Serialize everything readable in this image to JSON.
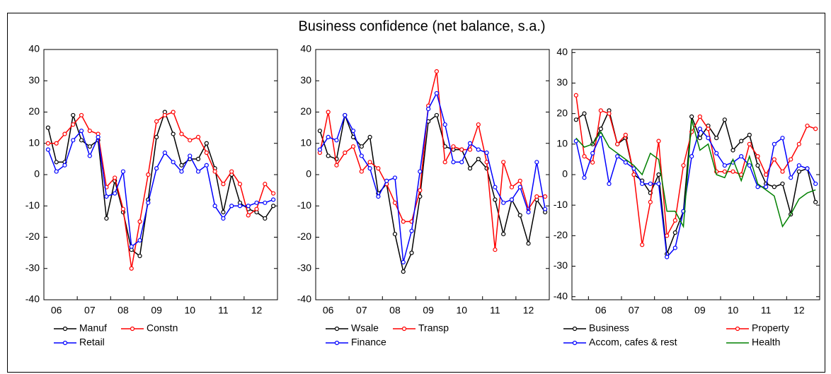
{
  "title": "Business confidence (net balance, s.a.)",
  "chart_data": [
    {
      "type": "line",
      "ylim": [
        -40,
        40
      ],
      "yticks": [
        -40,
        -30,
        -20,
        -10,
        0,
        10,
        20,
        30,
        40
      ],
      "categories": [
        null,
        "06",
        null,
        null,
        null,
        "07",
        null,
        null,
        null,
        "08",
        null,
        null,
        null,
        "09",
        null,
        null,
        null,
        "10",
        null,
        null,
        null,
        "11",
        null,
        null,
        null,
        "12",
        null,
        null
      ],
      "series": [
        {
          "name": "Manuf",
          "color": "#000000",
          "marker": true,
          "values": [
            15,
            4,
            4,
            19,
            11,
            9,
            11,
            -14,
            -2,
            -12,
            -24,
            -26,
            -8,
            12,
            20,
            13,
            3,
            5,
            5,
            10,
            2,
            -12,
            0,
            -9,
            -11,
            -12,
            -14,
            -10
          ]
        },
        {
          "name": "Constn",
          "color": "#ff0000",
          "marker": true,
          "values": [
            10,
            10,
            13,
            16,
            19,
            14,
            13,
            -4,
            -1,
            -11,
            -30,
            -15,
            0,
            17,
            19,
            20,
            13,
            11,
            12,
            7,
            1,
            -3,
            1,
            -3,
            -13,
            -11,
            -3,
            -6
          ]
        },
        {
          "name": "Retail",
          "color": "#0000ff",
          "marker": true,
          "values": [
            8,
            1,
            3,
            11,
            14,
            6,
            12,
            -7,
            -6,
            1,
            -23,
            -21,
            -9,
            2,
            7,
            4,
            1,
            6,
            1,
            3,
            -10,
            -14,
            -10,
            -10,
            -10,
            -9,
            -9,
            -8
          ]
        }
      ]
    },
    {
      "type": "line",
      "ylim": [
        -40,
        40
      ],
      "yticks": [
        -40,
        -30,
        -20,
        -10,
        0,
        10,
        20,
        30,
        40
      ],
      "categories": [
        null,
        "06",
        null,
        null,
        null,
        "07",
        null,
        null,
        null,
        "08",
        null,
        null,
        null,
        "09",
        null,
        null,
        null,
        "10",
        null,
        null,
        null,
        "11",
        null,
        null,
        null,
        "12",
        null,
        null
      ],
      "series": [
        {
          "name": "Wsale",
          "color": "#000000",
          "marker": true,
          "values": [
            14,
            6,
            5,
            19,
            12,
            9,
            12,
            -6,
            -3,
            -19,
            -31,
            -25,
            -7,
            17,
            19,
            9,
            8,
            8,
            2,
            5,
            2,
            -8,
            -19,
            -8,
            -13,
            -22,
            -8,
            -12
          ]
        },
        {
          "name": "Transp",
          "color": "#ff0000",
          "marker": true,
          "values": [
            7,
            20,
            3,
            7,
            9,
            1,
            4,
            2,
            -3,
            -9,
            -15,
            -15,
            -5,
            22,
            33,
            4,
            9,
            8,
            8,
            16,
            4,
            -24,
            4,
            -4,
            -2,
            -11,
            -7,
            -7
          ]
        },
        {
          "name": "Finance",
          "color": "#0000ff",
          "marker": true,
          "values": [
            8,
            12,
            11,
            19,
            14,
            6,
            2,
            -7,
            -2,
            -1,
            -28,
            -18,
            1,
            21,
            26,
            16,
            4,
            4,
            10,
            8,
            7,
            -4,
            -9,
            -8,
            -4,
            -12,
            4,
            -11
          ]
        }
      ]
    },
    {
      "type": "line",
      "ylim": [
        -41,
        41
      ],
      "yticks": [
        -40,
        -30,
        -20,
        -10,
        0,
        10,
        20,
        30,
        40
      ],
      "categories": [
        null,
        null,
        null,
        "06",
        null,
        null,
        null,
        "07",
        null,
        null,
        null,
        "08",
        null,
        null,
        null,
        "09",
        null,
        null,
        null,
        "10",
        null,
        null,
        null,
        "11",
        null,
        null,
        null,
        "12",
        null,
        null
      ],
      "series": [
        {
          "name": "Business",
          "color": "#000000",
          "marker": true,
          "values": [
            18,
            20,
            10,
            15,
            21,
            10,
            12,
            0,
            -2,
            -6,
            0,
            -26,
            -19,
            -12,
            19,
            12,
            16,
            12,
            18,
            8,
            11,
            13,
            3,
            -3,
            -4,
            -3,
            -13,
            1,
            2,
            -9
          ]
        },
        {
          "name": "Property",
          "color": "#ff0000",
          "marker": true,
          "values": [
            26,
            6,
            4,
            21,
            20,
            10,
            13,
            0,
            -23,
            -9,
            11,
            -20,
            -15,
            3,
            14,
            19,
            15,
            1,
            1,
            1,
            0,
            10,
            6,
            0,
            5,
            1,
            5,
            10,
            16,
            15
          ]
        },
        {
          "name": "Accom, cafes & rest",
          "color": "#0000ff",
          "marker": true,
          "values": [
            11,
            -1,
            7,
            13,
            -3,
            6,
            4,
            2,
            -3,
            -3,
            -3,
            -27,
            -24,
            -12,
            6,
            15,
            12,
            7,
            3,
            4,
            6,
            3,
            -4,
            -4,
            10,
            12,
            -1,
            3,
            2,
            -3
          ]
        },
        {
          "name": "Health",
          "color": "#008000",
          "marker": false,
          "values": [
            12,
            9,
            10,
            14,
            9,
            7,
            5,
            3,
            0,
            7,
            5,
            -12,
            -12,
            -17,
            18,
            8,
            10,
            0,
            -1,
            5,
            -2,
            6,
            -3,
            -5,
            -7,
            -17,
            -13,
            -8,
            -6,
            -5
          ]
        }
      ]
    }
  ]
}
